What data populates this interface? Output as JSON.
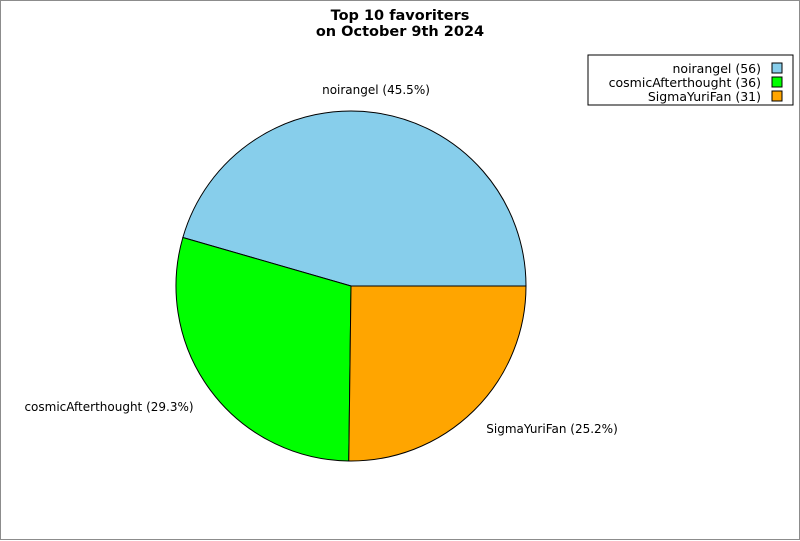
{
  "chart_data": {
    "type": "pie",
    "title_lines": [
      "Top 10 favoriters",
      "on October 9th 2024"
    ],
    "slices": [
      {
        "name": "noirangel",
        "value": 56,
        "percent_label": "noirangel (45.5%)",
        "legend_label": "noirangel (56)",
        "color": "#87ceeb"
      },
      {
        "name": "cosmicAfterthought",
        "value": 36,
        "percent_label": "cosmicAfterthought (29.3%)",
        "legend_label": "cosmicAfterthought (36)",
        "color": "#00ff00"
      },
      {
        "name": "SigmaYuriFan",
        "value": 31,
        "percent_label": "SigmaYuriFan (25.2%)",
        "legend_label": "SigmaYuriFan (31)",
        "color": "#ffa500"
      }
    ],
    "legend_position": "top-right",
    "start_angle_deg": 0,
    "direction": "counterclockwise"
  }
}
